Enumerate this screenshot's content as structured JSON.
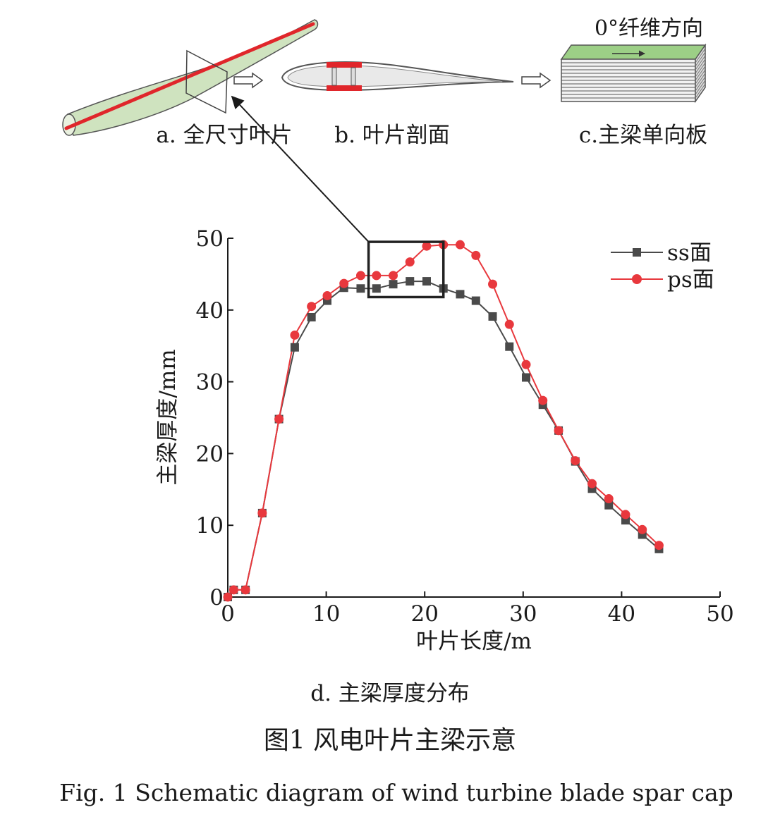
{
  "panels": {
    "a_label": "a. 全尺寸叶片",
    "b_label": "b. 叶片剖面",
    "c_label": "c.主梁单向板",
    "c_direction_label": "0°纤维方向",
    "d_label": "d. 主梁厚度分布"
  },
  "caption": {
    "cn": "图1 风电叶片主梁示意",
    "en": "Fig. 1 Schematic diagram of wind turbine blade spar cap"
  },
  "colors": {
    "ss": "#4a4a4a",
    "ps": "#e8383d",
    "spar_red": "#e0262b",
    "blade_fill": "#cfe3bf",
    "laminate_top": "#9ccf86"
  },
  "chart_data": {
    "type": "line",
    "xlabel": "叶片长度/m",
    "ylabel": "主梁厚度/mm",
    "xlim": [
      0,
      50
    ],
    "ylim": [
      0,
      50
    ],
    "xticks": [
      0,
      10,
      20,
      30,
      40,
      50
    ],
    "yticks": [
      0,
      10,
      20,
      30,
      40,
      50
    ],
    "legend_position": "top-right",
    "highlight_box": {
      "x": [
        14.3,
        21.9
      ],
      "y": [
        41.8,
        49.5
      ]
    },
    "series": [
      {
        "name": "ss面",
        "marker": "square",
        "x": [
          0,
          0.6,
          1.8,
          3.5,
          5.2,
          6.8,
          8.5,
          10.1,
          11.8,
          13.5,
          15.1,
          16.8,
          18.5,
          20.2,
          21.9,
          23.6,
          25.2,
          26.9,
          28.6,
          30.3,
          32.0,
          33.6,
          35.3,
          37.0,
          38.7,
          40.4,
          42.1,
          43.8
        ],
        "y": [
          0,
          1.0,
          1.0,
          11.7,
          24.8,
          34.8,
          39.0,
          41.3,
          43.1,
          43.0,
          43.0,
          43.6,
          44.0,
          44.0,
          43.0,
          42.2,
          41.3,
          39.1,
          34.9,
          30.6,
          26.8,
          23.2,
          18.9,
          15.1,
          12.8,
          10.7,
          8.7,
          6.7
        ]
      },
      {
        "name": "ps面",
        "marker": "circle",
        "x": [
          0,
          0.6,
          1.8,
          3.5,
          5.2,
          6.8,
          8.5,
          10.1,
          11.8,
          13.5,
          15.1,
          16.8,
          18.5,
          20.2,
          21.9,
          23.6,
          25.2,
          26.9,
          28.6,
          30.3,
          32.0,
          33.6,
          35.3,
          37.0,
          38.7,
          40.4,
          42.1,
          43.8
        ],
        "y": [
          0,
          1.0,
          1.0,
          11.7,
          24.8,
          36.5,
          40.5,
          42.0,
          43.7,
          44.8,
          44.8,
          44.8,
          46.7,
          48.9,
          49.1,
          49.1,
          47.6,
          43.6,
          38.0,
          32.4,
          27.4,
          23.2,
          19.0,
          15.8,
          13.7,
          11.5,
          9.4,
          7.2
        ]
      }
    ]
  }
}
